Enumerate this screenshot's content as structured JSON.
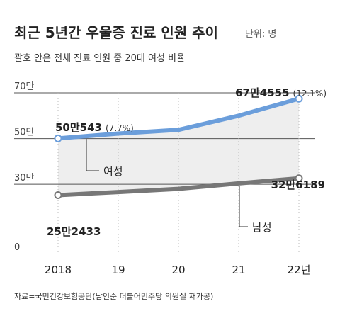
{
  "header": {
    "title": "최근 5년간 우울증 진료 인원 추이",
    "unit": "단위: 명",
    "subtitle": "괄호 안은 전체 진료 인원 중 20대 여성 비율"
  },
  "footer": {
    "source": "자료=국민건강보험공단(남인순 더불어민주당 의원실 재가공)"
  },
  "colors": {
    "female": "#6b9edb",
    "male": "#777777",
    "band": "#eeeeee",
    "grid": "#555555",
    "guide": "#bbbbbb"
  },
  "chart_data": {
    "type": "line",
    "categories": [
      "2018",
      "19",
      "20",
      "21",
      "22년"
    ],
    "x": [
      2018,
      2019,
      2020,
      2021,
      2022
    ],
    "ylim": [
      0,
      700000
    ],
    "yticks": [
      {
        "value": 700000,
        "label": "70만"
      },
      {
        "value": 500000,
        "label": "50만"
      },
      {
        "value": 300000,
        "label": "30만"
      },
      {
        "value": 0,
        "label": "0"
      }
    ],
    "series": [
      {
        "name": "여성",
        "values": [
          500543,
          522000,
          538000,
          600000,
          674555
        ],
        "labels": [
          {
            "index": 0,
            "value": "50만543",
            "pct": "(7.7%)"
          },
          {
            "index": 4,
            "value": "67만4555",
            "pct": "(12.1%)"
          }
        ]
      },
      {
        "name": "남성",
        "values": [
          252433,
          266000,
          280000,
          304000,
          326189
        ],
        "labels": [
          {
            "index": 0,
            "value": "25만2433",
            "pct": ""
          },
          {
            "index": 4,
            "value": "32만6189",
            "pct": ""
          }
        ]
      }
    ]
  }
}
